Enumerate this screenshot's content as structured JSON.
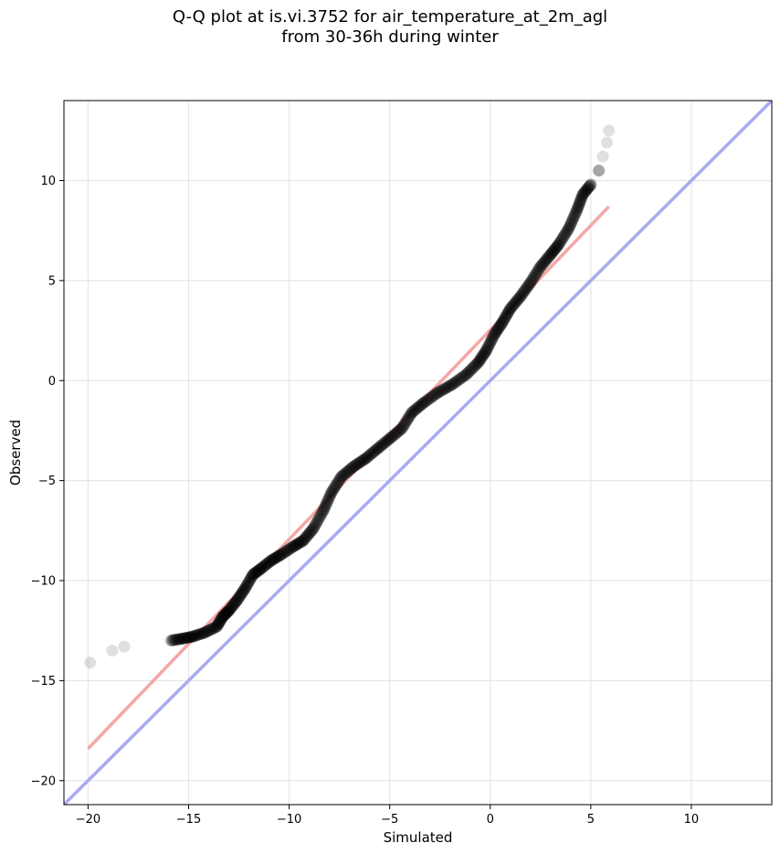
{
  "chart_data": {
    "type": "scatter",
    "title_line1": "Q-Q plot at is.vi.3752 for air_temperature_at_2m_agl",
    "title_line2": "from 30-36h during winter",
    "xlabel": "Simulated",
    "ylabel": "Observed",
    "xlim": [
      -21.2,
      14.0
    ],
    "ylim": [
      -21.2,
      14.0
    ],
    "xticks": [
      -20,
      -15,
      -10,
      -5,
      0,
      5,
      10
    ],
    "yticks": [
      -20,
      -15,
      -10,
      -5,
      0,
      5,
      10
    ],
    "grid": true,
    "colors": {
      "points": "#000000",
      "fit_line": "#f4a6a6",
      "identity_line": "#aaaaf2",
      "grid": "#e6e6e6"
    },
    "quantile_curve": [
      [
        -19.9,
        -14.1
      ],
      [
        -18.8,
        -13.5
      ],
      [
        -18.2,
        -13.3
      ],
      [
        -15.9,
        -13.0
      ],
      [
        -15.3,
        -12.9
      ],
      [
        -14.8,
        -12.8
      ],
      [
        -14.2,
        -12.6
      ],
      [
        -13.6,
        -12.3
      ],
      [
        -13.3,
        -11.8
      ],
      [
        -13.0,
        -11.5
      ],
      [
        -12.6,
        -11.0
      ],
      [
        -12.2,
        -10.4
      ],
      [
        -11.8,
        -9.7
      ],
      [
        -11.4,
        -9.4
      ],
      [
        -10.9,
        -9.0
      ],
      [
        -10.4,
        -8.7
      ],
      [
        -9.8,
        -8.3
      ],
      [
        -9.3,
        -8.0
      ],
      [
        -8.8,
        -7.4
      ],
      [
        -8.3,
        -6.5
      ],
      [
        -7.9,
        -5.6
      ],
      [
        -7.4,
        -4.8
      ],
      [
        -6.8,
        -4.3
      ],
      [
        -6.2,
        -3.9
      ],
      [
        -5.6,
        -3.4
      ],
      [
        -5.0,
        -2.9
      ],
      [
        -4.4,
        -2.4
      ],
      [
        -3.9,
        -1.6
      ],
      [
        -3.3,
        -1.1
      ],
      [
        -2.6,
        -0.6
      ],
      [
        -1.9,
        -0.2
      ],
      [
        -1.2,
        0.3
      ],
      [
        -0.6,
        0.9
      ],
      [
        -0.2,
        1.5
      ],
      [
        0.2,
        2.3
      ],
      [
        0.6,
        2.9
      ],
      [
        1.0,
        3.6
      ],
      [
        1.5,
        4.2
      ],
      [
        2.0,
        4.9
      ],
      [
        2.5,
        5.7
      ],
      [
        3.0,
        6.3
      ],
      [
        3.4,
        6.8
      ],
      [
        3.9,
        7.6
      ],
      [
        4.3,
        8.5
      ],
      [
        4.6,
        9.3
      ],
      [
        5.0,
        9.8
      ],
      [
        5.4,
        10.5
      ],
      [
        5.6,
        11.2
      ],
      [
        5.8,
        11.9
      ],
      [
        5.9,
        12.5
      ]
    ],
    "fit_line": {
      "x": [
        -20.0,
        5.9
      ],
      "y": [
        -18.4,
        8.7
      ]
    },
    "identity_line": {
      "x": [
        -21.2,
        14.0
      ],
      "y": [
        -21.2,
        14.0
      ]
    }
  }
}
